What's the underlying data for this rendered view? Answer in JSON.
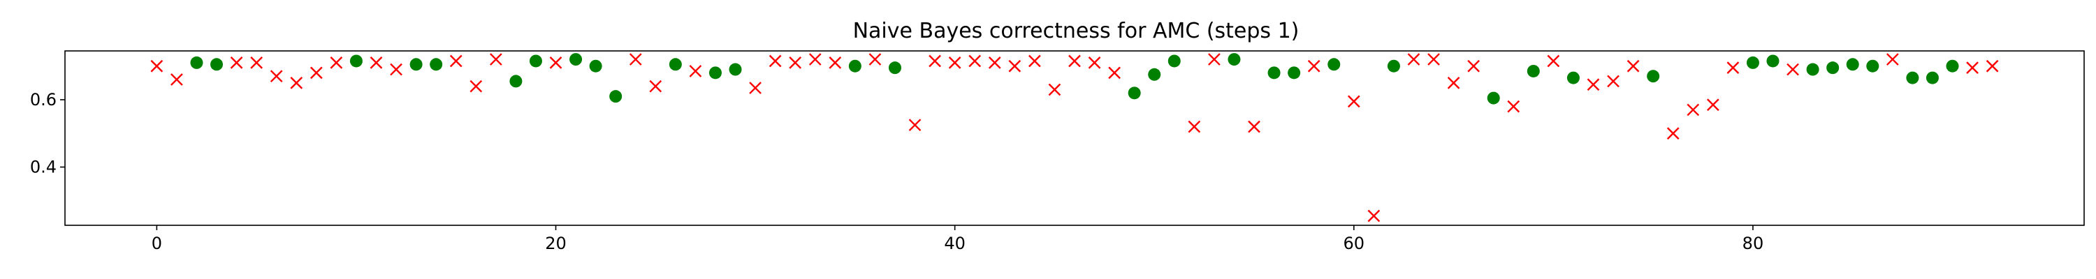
{
  "chart_data": {
    "type": "scatter",
    "title": "Naive Bayes correctness for AMC (steps 1)",
    "xlabel": "",
    "ylabel": "",
    "xlim": [
      -4.6,
      96.6
    ],
    "ylim": [
      0.227,
      0.745
    ],
    "xticks": [
      0,
      20,
      40,
      60,
      80
    ],
    "yticks": [
      0.4,
      0.6
    ],
    "grid": false,
    "legend": "none",
    "colors": {
      "correct": "#008000",
      "incorrect": "#ff0000"
    },
    "series": [
      {
        "marker": "circle",
        "color": "#008000",
        "x": [
          2,
          3,
          10,
          13,
          14,
          18,
          19,
          21,
          22,
          23,
          26,
          28,
          29,
          35,
          37,
          49,
          50,
          51,
          54,
          56,
          57,
          59,
          62,
          67,
          69,
          71,
          75,
          80,
          81,
          83,
          84,
          85,
          86,
          88,
          89,
          90
        ],
        "y": [
          0.71,
          0.705,
          0.715,
          0.705,
          0.705,
          0.655,
          0.715,
          0.72,
          0.7,
          0.61,
          0.705,
          0.68,
          0.69,
          0.7,
          0.695,
          0.62,
          0.675,
          0.715,
          0.72,
          0.68,
          0.68,
          0.705,
          0.7,
          0.605,
          0.685,
          0.665,
          0.67,
          0.71,
          0.715,
          0.69,
          0.695,
          0.705,
          0.7,
          0.665,
          0.665,
          0.7
        ]
      },
      {
        "marker": "x",
        "color": "#ff0000",
        "x": [
          0,
          1,
          4,
          5,
          6,
          7,
          8,
          9,
          11,
          12,
          15,
          16,
          17,
          20,
          24,
          25,
          27,
          30,
          31,
          32,
          33,
          34,
          36,
          38,
          39,
          40,
          41,
          42,
          43,
          44,
          45,
          46,
          47,
          48,
          52,
          53,
          55,
          58,
          60,
          61,
          63,
          64,
          65,
          66,
          68,
          70,
          72,
          73,
          74,
          76,
          77,
          78,
          79,
          82,
          87,
          91,
          92
        ],
        "y": [
          0.7,
          0.66,
          0.71,
          0.71,
          0.67,
          0.65,
          0.68,
          0.71,
          0.71,
          0.69,
          0.715,
          0.64,
          0.72,
          0.71,
          0.72,
          0.64,
          0.685,
          0.635,
          0.715,
          0.71,
          0.72,
          0.71,
          0.72,
          0.525,
          0.715,
          0.71,
          0.715,
          0.71,
          0.7,
          0.715,
          0.63,
          0.715,
          0.71,
          0.68,
          0.52,
          0.72,
          0.52,
          0.7,
          0.595,
          0.255,
          0.72,
          0.72,
          0.65,
          0.7,
          0.58,
          0.715,
          0.645,
          0.655,
          0.7,
          0.5,
          0.57,
          0.585,
          0.695,
          0.69,
          0.72,
          0.695,
          0.7
        ]
      }
    ]
  }
}
